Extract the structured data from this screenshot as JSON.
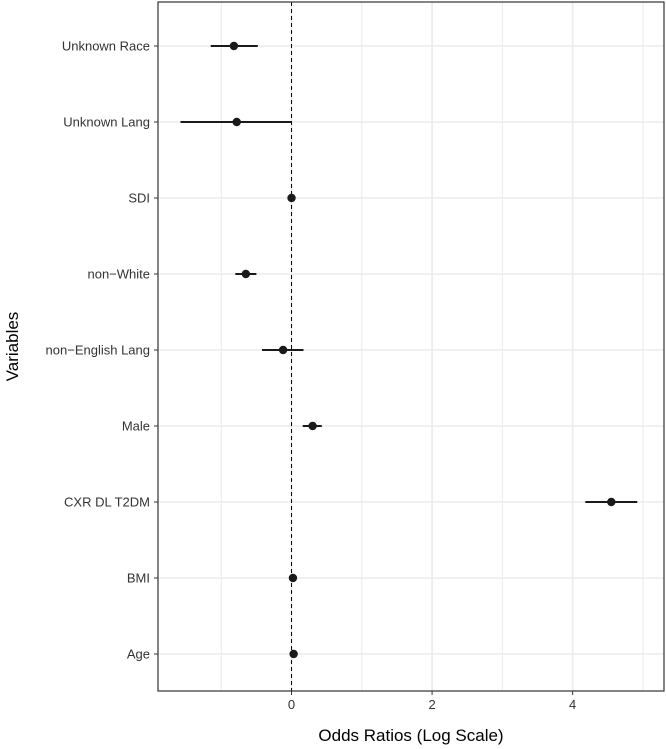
{
  "chart_data": {
    "type": "scatter",
    "subtype": "forest-plot",
    "xlabel": "Odds Ratios (Log Scale)",
    "ylabel": "Variables",
    "xlim": [
      -1.9,
      5.3
    ],
    "x_ticks": [
      0,
      2,
      4
    ],
    "x_tick_labels": [
      "0",
      "2",
      "4"
    ],
    "reference_line": 0,
    "grid": true,
    "categories": [
      "Unknown Race",
      "Unknown Lang",
      "SDI",
      "non−White",
      "non−English Lang",
      "Male",
      "CXR DL T2DM",
      "BMI",
      "Age"
    ],
    "estimates": [
      -0.82,
      -0.78,
      0.0,
      -0.65,
      -0.12,
      0.3,
      4.55,
      0.02,
      0.03
    ],
    "lower": [
      -1.15,
      -1.58,
      -0.01,
      -0.8,
      -0.42,
      0.16,
      4.18,
      0.01,
      0.02
    ],
    "upper": [
      -0.48,
      0.0,
      0.01,
      -0.5,
      0.17,
      0.43,
      4.92,
      0.03,
      0.04
    ],
    "colors": {
      "point": "#1a1a1a",
      "grid": "#ebebeb",
      "panel_border": "#333333",
      "reference": "#000000"
    }
  }
}
